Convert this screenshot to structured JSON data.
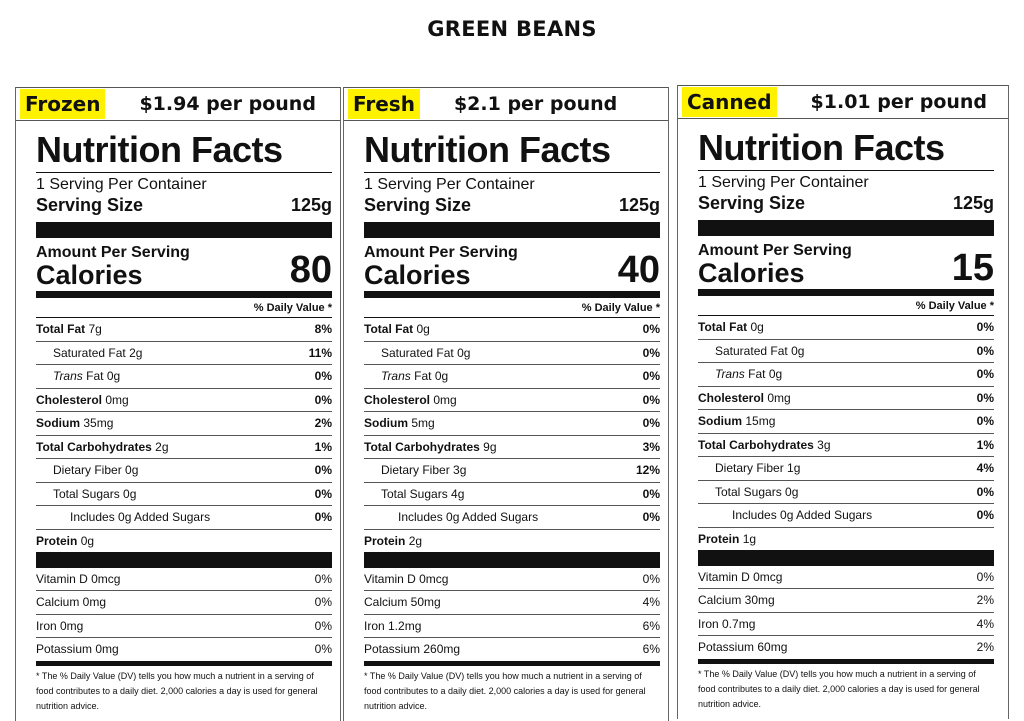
{
  "title": "GREEN BEANS",
  "labels": [
    {
      "type": "Frozen",
      "price": "$1.94 per pound",
      "nf_title": "Nutrition Facts",
      "servings": "1 Serving Per Container",
      "serving_size_label": "Serving Size",
      "serving_size": "125g",
      "amount_per_serving": "Amount Per Serving",
      "calories_label": "Calories",
      "calories": "80",
      "dv_header": "% Daily Value *",
      "nutrients": [
        {
          "label": "Total Fat",
          "value": "7g",
          "dv": "8%"
        },
        {
          "label": "Saturated Fat",
          "value": "2g",
          "dv": "11%"
        },
        {
          "label": "Trans",
          "value": "Fat 0g",
          "dv": "0%"
        },
        {
          "label": "Cholesterol",
          "value": "0mg",
          "dv": "0%"
        },
        {
          "label": "Sodium",
          "value": "35mg",
          "dv": "2%"
        },
        {
          "label": "Total Carbohydrates",
          "value": "2g",
          "dv": "1%"
        },
        {
          "label": "Dietary Fiber",
          "value": "0g",
          "dv": "0%"
        },
        {
          "label": "Total Sugars",
          "value": "0g",
          "dv": "0%"
        },
        {
          "label": "Includes 0g Added Sugars",
          "value": "",
          "dv": "0%"
        }
      ],
      "protein_label": "Protein",
      "protein": "0g",
      "vitamins": [
        {
          "label": "Vitamin D 0mcg",
          "dv": "0%"
        },
        {
          "label": "Calcium 0mg",
          "dv": "0%"
        },
        {
          "label": "Iron 0mg",
          "dv": "0%"
        },
        {
          "label": "Potassium 0mg",
          "dv": "0%"
        }
      ],
      "footnote": "* The % Daily Value (DV) tells you how much a nutrient in a serving of food contributes to a daily diet. 2,000 calories a day is used for general nutrition advice."
    },
    {
      "type": "Fresh",
      "price": "$2.1 per pound",
      "nf_title": "Nutrition Facts",
      "servings": "1 Serving Per Container",
      "serving_size_label": "Serving Size",
      "serving_size": "125g",
      "amount_per_serving": "Amount Per Serving",
      "calories_label": "Calories",
      "calories": "40",
      "dv_header": "% Daily Value *",
      "nutrients": [
        {
          "label": "Total Fat",
          "value": "0g",
          "dv": "0%"
        },
        {
          "label": "Saturated Fat",
          "value": "0g",
          "dv": "0%"
        },
        {
          "label": "Trans",
          "value": "Fat 0g",
          "dv": "0%"
        },
        {
          "label": "Cholesterol",
          "value": "0mg",
          "dv": "0%"
        },
        {
          "label": "Sodium",
          "value": "5mg",
          "dv": "0%"
        },
        {
          "label": "Total Carbohydrates",
          "value": "9g",
          "dv": "3%"
        },
        {
          "label": "Dietary Fiber",
          "value": "3g",
          "dv": "12%"
        },
        {
          "label": "Total Sugars",
          "value": "4g",
          "dv": "0%"
        },
        {
          "label": "Includes 0g Added Sugars",
          "value": "",
          "dv": "0%"
        }
      ],
      "protein_label": "Protein",
      "protein": "2g",
      "vitamins": [
        {
          "label": "Vitamin D 0mcg",
          "dv": "0%"
        },
        {
          "label": "Calcium 50mg",
          "dv": "4%"
        },
        {
          "label": "Iron 1.2mg",
          "dv": "6%"
        },
        {
          "label": "Potassium 260mg",
          "dv": "6%"
        }
      ],
      "footnote": "* The % Daily Value (DV) tells you how much a nutrient in a serving of food contributes to a daily diet. 2,000 calories a day is used for general nutrition advice."
    },
    {
      "type": "Canned",
      "price": "$1.01 per pound",
      "nf_title": "Nutrition Facts",
      "servings": "1 Serving Per Container",
      "serving_size_label": "Serving Size",
      "serving_size": "125g",
      "amount_per_serving": "Amount Per Serving",
      "calories_label": "Calories",
      "calories": "15",
      "dv_header": "% Daily Value *",
      "nutrients": [
        {
          "label": "Total Fat",
          "value": "0g",
          "dv": "0%"
        },
        {
          "label": "Saturated Fat",
          "value": "0g",
          "dv": "0%"
        },
        {
          "label": "Trans",
          "value": "Fat 0g",
          "dv": "0%"
        },
        {
          "label": "Cholesterol",
          "value": "0mg",
          "dv": "0%"
        },
        {
          "label": "Sodium",
          "value": "15mg",
          "dv": "0%"
        },
        {
          "label": "Total Carbohydrates",
          "value": "3g",
          "dv": "1%"
        },
        {
          "label": "Dietary Fiber",
          "value": "1g",
          "dv": "4%"
        },
        {
          "label": "Total Sugars",
          "value": "0g",
          "dv": "0%"
        },
        {
          "label": "Includes 0g Added Sugars",
          "value": "",
          "dv": "0%"
        }
      ],
      "protein_label": "Protein",
      "protein": "1g",
      "vitamins": [
        {
          "label": "Vitamin D 0mcg",
          "dv": "0%"
        },
        {
          "label": "Calcium 30mg",
          "dv": "2%"
        },
        {
          "label": "Iron 0.7mg",
          "dv": "4%"
        },
        {
          "label": "Potassium 60mg",
          "dv": "2%"
        }
      ],
      "footnote": "* The % Daily Value (DV) tells you how much a nutrient in a serving of food contributes to a daily diet. 2,000 calories a day is used for general nutrition advice."
    }
  ]
}
